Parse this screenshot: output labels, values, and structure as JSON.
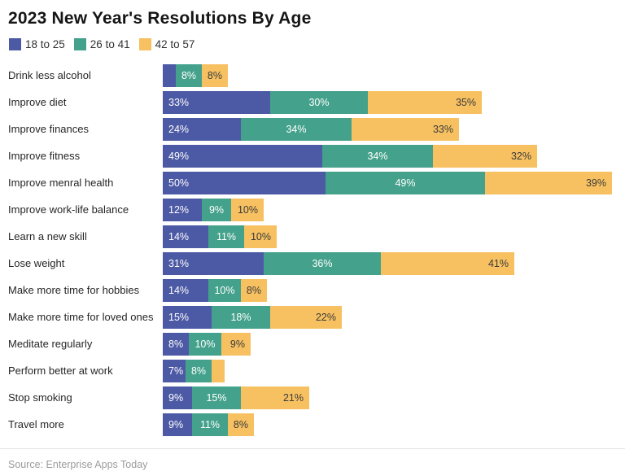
{
  "title": "2023 New Year's Resolutions By Age",
  "source": "Source: Enterprise Apps Today",
  "colors": {
    "series_blue": "#4c59a4",
    "series_green": "#44a18b",
    "series_yellow": "#f7c161",
    "label_on_dark": "#ffffff",
    "label_on_yellow": "#3b3b3b",
    "title_text": "#151515",
    "category_text": "#262626",
    "source_text": "#9c9c9c",
    "divider": "#e3e3e3"
  },
  "legend": [
    {
      "label": "18 to 25",
      "color": "#4c59a4"
    },
    {
      "label": "26 to 41",
      "color": "#44a18b"
    },
    {
      "label": "42 to 57",
      "color": "#f7c161"
    }
  ],
  "chart_data": {
    "type": "bar",
    "orientation": "horizontal",
    "stacked": true,
    "unit": "percent",
    "grid": false,
    "legend_position": "top",
    "xlim": [
      0,
      140
    ],
    "title": "2023 New Year's Resolutions By Age",
    "categories": [
      "Drink less alcohol",
      "Improve diet",
      "Improve finances",
      "Improve fitness",
      "Improve menral health",
      "Improve work-life balance",
      "Learn a new skill",
      "Lose weight",
      "Make more time for hobbies",
      "Make more time for loved ones",
      "Meditate regularly",
      "Perform better at work",
      "Stop smoking",
      "Travel more"
    ],
    "series": [
      {
        "name": "18 to 25",
        "color": "#4c59a4",
        "values": [
          4,
          33,
          24,
          49,
          50,
          12,
          14,
          31,
          14,
          15,
          8,
          7,
          9,
          9
        ],
        "labels": [
          "",
          "33%",
          "24%",
          "49%",
          "50%",
          "12%",
          "14%",
          "31%",
          "14%",
          "15%",
          "8%",
          "7%",
          "9%",
          "9%"
        ]
      },
      {
        "name": "26 to 41",
        "color": "#44a18b",
        "values": [
          8,
          30,
          34,
          34,
          49,
          9,
          11,
          36,
          10,
          18,
          10,
          8,
          15,
          11
        ],
        "labels": [
          "8%",
          "30%",
          "34%",
          "34%",
          "49%",
          "9%",
          "11%",
          "36%",
          "10%",
          "18%",
          "10%",
          "8%",
          "15%",
          "11%"
        ]
      },
      {
        "name": "42 to 57",
        "color": "#f7c161",
        "values": [
          8,
          35,
          33,
          32,
          39,
          10,
          10,
          41,
          8,
          22,
          9,
          4,
          21,
          8
        ],
        "labels": [
          "8%",
          "35%",
          "33%",
          "32%",
          "39%",
          "10%",
          "10%",
          "41%",
          "8%",
          "22%",
          "9%",
          "",
          "21%",
          "8%"
        ]
      }
    ]
  }
}
